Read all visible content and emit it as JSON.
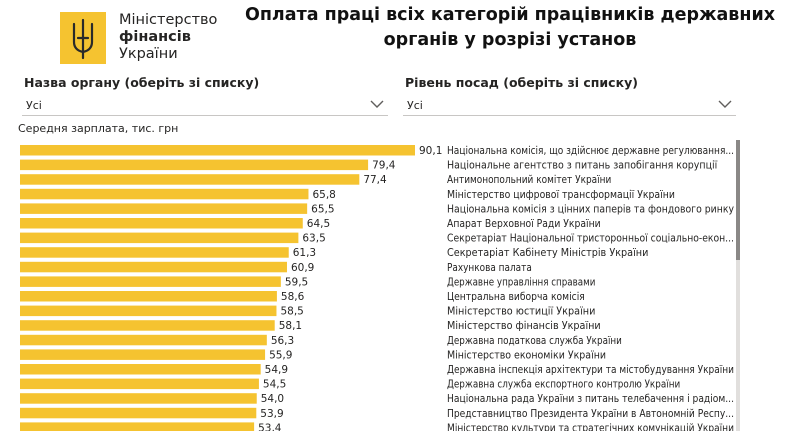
{
  "header": {
    "org_line1": "Міністерство",
    "org_line2": "фінансів",
    "org_line3": "України",
    "title_line1": "Оплата праці всіх категорій працівників державних",
    "title_line2": "органів у розрізі установ"
  },
  "filters": {
    "body": {
      "label": "Назва органу (оберіть зі списку)",
      "value": "Усі"
    },
    "level": {
      "label": "Рівень посад (оберіть зі списку)",
      "value": "Усі"
    }
  },
  "colors": {
    "bar": "#f5c330",
    "accent": "#f5c330"
  },
  "chart_data": {
    "type": "bar",
    "orientation": "horizontal",
    "title": "Середня зарплата, тис. грн",
    "categories": [
      "Національна комісія, що здійснює державне регулювання...",
      "Національне агентство з питань запобігання корупції",
      "Антимонопольний комітет України",
      "Міністерство цифрової трансформації України",
      "Національна комісія з цінних паперів та фондового ринку",
      "Апарат Верховної Ради України",
      "Секретаріат Національної тристоронньої соціально-екон...",
      "Секретаріат Кабінету Міністрів України",
      "Рахункова палата",
      "Державне управління справами",
      "Центральна виборча комісія",
      "Міністерство юстиції України",
      "Міністерство фінансів України",
      "Державна податкова служба України",
      "Міністерство економіки України",
      "Державна інспекція архітектури та містобудування України",
      "Державна служба експортного контролю України",
      "Національна рада України з питань телебачення і радіом...",
      "Представництво Президента України в Автономній Респу...",
      "Міністерство культури та стратегічних комунікацій України"
    ],
    "values": [
      90.1,
      79.4,
      77.4,
      65.8,
      65.5,
      64.5,
      63.5,
      61.3,
      60.9,
      59.5,
      58.6,
      58.5,
      58.1,
      56.3,
      55.9,
      54.9,
      54.5,
      54.0,
      53.9,
      53.4
    ],
    "value_labels": [
      "90,1",
      "79,4",
      "77,4",
      "65,8",
      "65,5",
      "64,5",
      "63,5",
      "61,3",
      "60,9",
      "59,5",
      "58,6",
      "58,5",
      "58,1",
      "56,3",
      "55,9",
      "54,9",
      "54,5",
      "54,0",
      "53,9",
      "53,4"
    ],
    "xlim": [
      0,
      90.1
    ]
  }
}
